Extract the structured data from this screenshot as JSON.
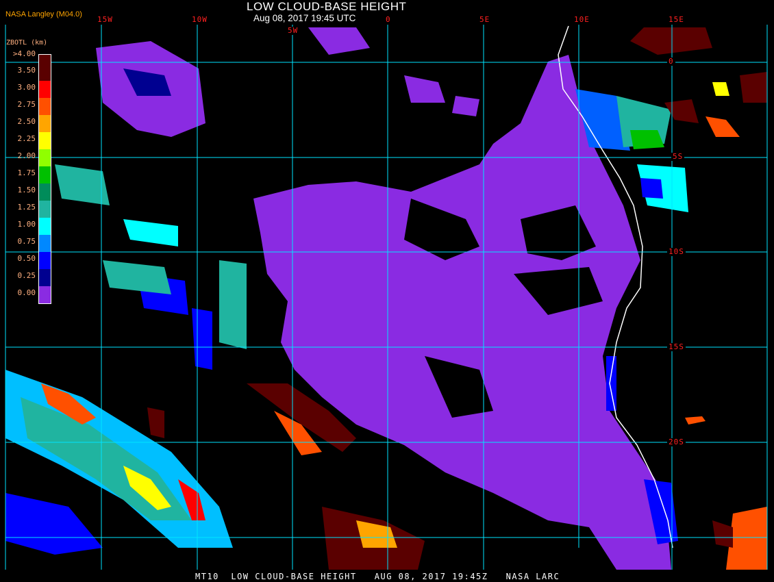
{
  "header": {
    "title": "LOW CLOUD-BASE HEIGHT",
    "subtitle": "Aug 08, 2017 19:45 UTC",
    "credit": "NASA Langley (M04.0)"
  },
  "footer": {
    "text": "MT10  LOW CLOUD-BASE HEIGHT   AUG 08, 2017 19:45Z   NASA LARC"
  },
  "grid": {
    "longitude_labels": [
      "15W",
      "10W",
      "5W",
      "0",
      "5E",
      "10E",
      "15E"
    ],
    "latitude_labels": [
      "0",
      "5S",
      "10S",
      "15S",
      "20S"
    ],
    "grid_color": "#00e5ff",
    "label_color": "#ff2020"
  },
  "legend": {
    "title": "ZBOTL (km)",
    "entries": [
      {
        "label": ">4.00",
        "color": "#5a0000"
      },
      {
        "label": "3.50",
        "color": "#5a0000"
      },
      {
        "label": "3.00",
        "color": "#ff0000"
      },
      {
        "label": "2.75",
        "color": "#ff5000"
      },
      {
        "label": "2.50",
        "color": "#ffa500"
      },
      {
        "label": "2.25",
        "color": "#ffff00"
      },
      {
        "label": "2.00",
        "color": "#90ff00"
      },
      {
        "label": "1.75",
        "color": "#00c000"
      },
      {
        "label": "1.50",
        "color": "#008c5a"
      },
      {
        "label": "1.25",
        "color": "#20b4a0"
      },
      {
        "label": "1.00",
        "color": "#00ffff"
      },
      {
        "label": "0.75",
        "color": "#0088ff"
      },
      {
        "label": "0.50",
        "color": "#0000ff"
      },
      {
        "label": "0.25",
        "color": "#000090"
      },
      {
        "label": "0.00",
        "color": "#8a2be2"
      }
    ]
  }
}
